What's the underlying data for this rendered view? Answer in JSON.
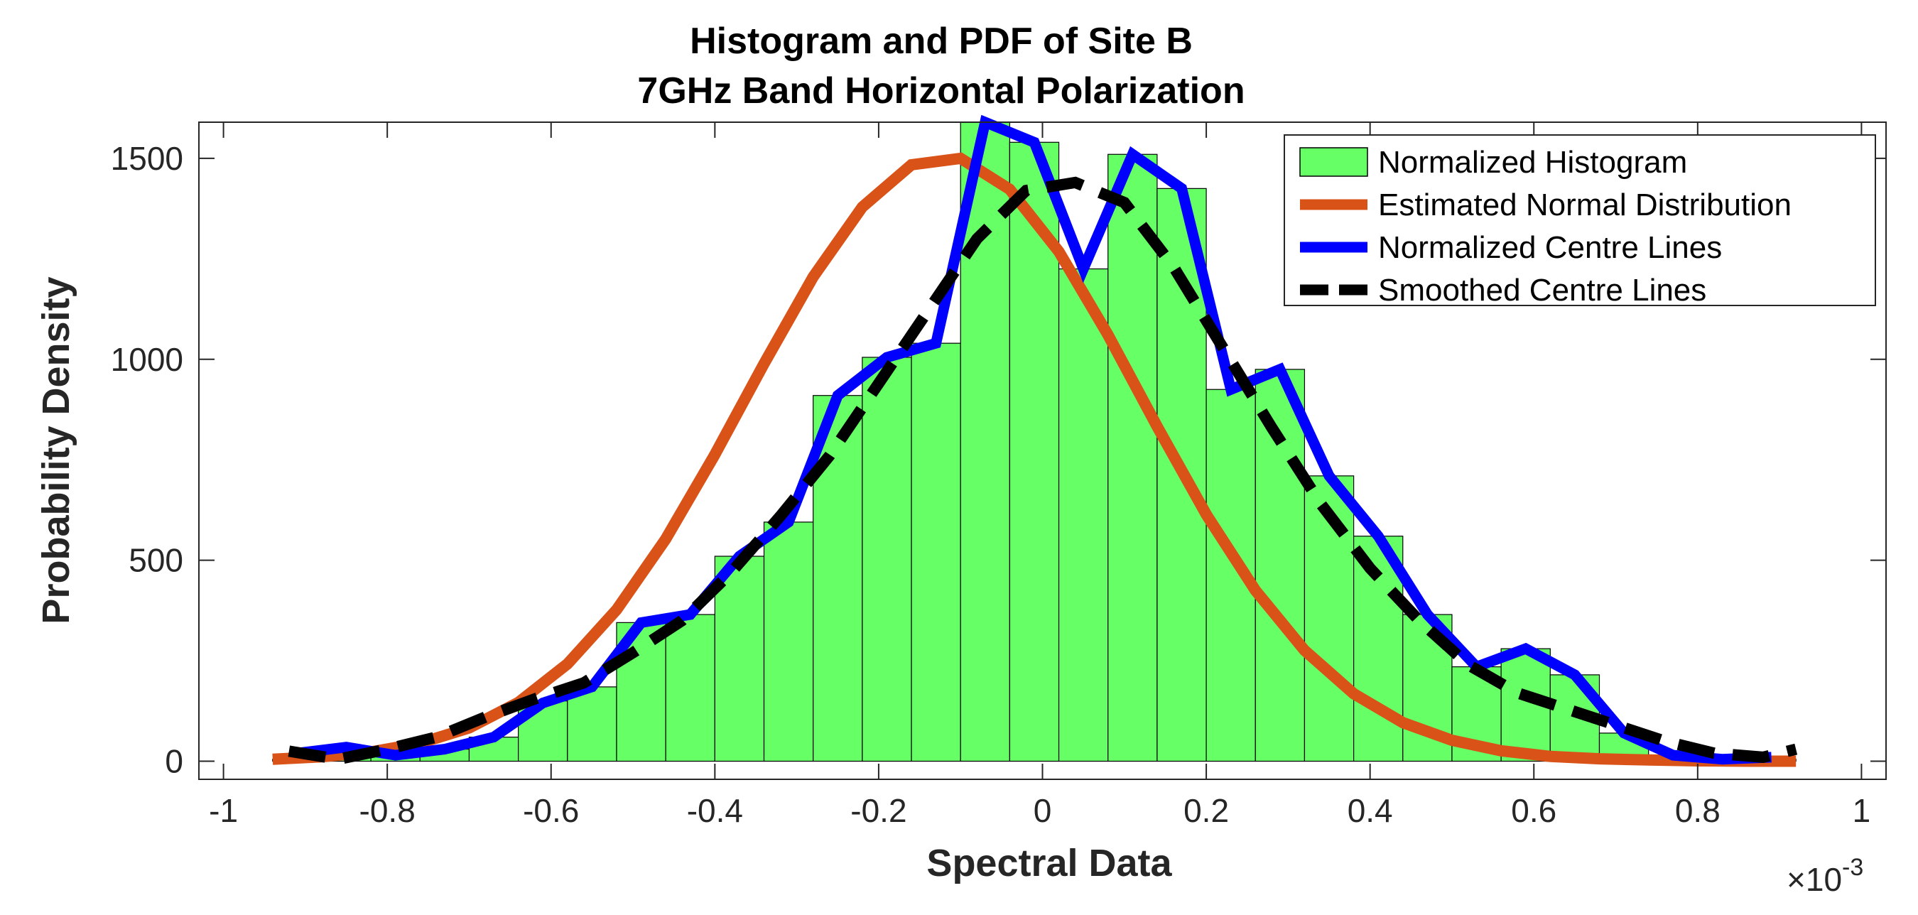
{
  "chart_data": {
    "type": "bar",
    "title": [
      "Histogram and PDF of Site B",
      "7GHz Band Horizontal Polarization"
    ],
    "xlabel": "Spectral Data",
    "ylabel": "Probability Density",
    "x_exponent_label": "×10",
    "x_exponent_power": "-3",
    "xlim": [
      -1.03,
      1.03
    ],
    "ylim": [
      -45,
      1590
    ],
    "xticks": [
      -1,
      -0.8,
      -0.6,
      -0.4,
      -0.2,
      0,
      0.2,
      0.4,
      0.6,
      0.8,
      1
    ],
    "xtick_labels": [
      "-1",
      "-0.8",
      "-0.6",
      "-0.4",
      "-0.2",
      "0",
      "0.2",
      "0.4",
      "0.6",
      "0.8",
      "1"
    ],
    "yticks": [
      0,
      500,
      1000,
      1500
    ],
    "ytick_labels": [
      "0",
      "500",
      "1000",
      "1500"
    ],
    "grid": false,
    "legend_position": "top-right",
    "legend": [
      {
        "label": "Normalized Histogram",
        "style": "patch",
        "color": "#66ff66"
      },
      {
        "label": "Estimated Normal Distribution",
        "style": "line",
        "color": "#d95319"
      },
      {
        "label": "Normalized Centre Lines",
        "style": "line",
        "color": "#0000ff"
      },
      {
        "label": "Smoothed Centre Lines",
        "style": "dash",
        "color": "#000000"
      }
    ],
    "histogram": {
      "name": "Normalized Histogram",
      "bin_edges": [
        -0.94,
        -0.88,
        -0.82,
        -0.76,
        -0.7,
        -0.64,
        -0.58,
        -0.52,
        -0.46,
        -0.4,
        -0.34,
        -0.28,
        -0.22,
        -0.16,
        -0.1,
        -0.04,
        0.02,
        0.08,
        0.14,
        0.2,
        0.26,
        0.32,
        0.38,
        0.44,
        0.5,
        0.56,
        0.62,
        0.68,
        0.74,
        0.8,
        0.86,
        0.92
      ],
      "values": [
        5,
        25,
        15,
        30,
        60,
        150,
        185,
        345,
        365,
        510,
        595,
        910,
        1005,
        1040,
        1590,
        1540,
        1225,
        1510,
        1425,
        925,
        975,
        710,
        560,
        365,
        235,
        280,
        215,
        70,
        15,
        5,
        5
      ],
      "fill": "#66ff66",
      "edge": "#000000"
    },
    "series": [
      {
        "name": "Estimated Normal Distribution",
        "color": "#d95319",
        "x": [
          -0.94,
          -0.88,
          -0.82,
          -0.76,
          -0.7,
          -0.64,
          -0.58,
          -0.52,
          -0.46,
          -0.4,
          -0.34,
          -0.28,
          -0.22,
          -0.16,
          -0.1,
          -0.04,
          0.02,
          0.08,
          0.14,
          0.2,
          0.26,
          0.32,
          0.38,
          0.44,
          0.5,
          0.56,
          0.62,
          0.68,
          0.74,
          0.8,
          0.86,
          0.92
        ],
        "values": [
          5,
          11,
          23,
          45,
          83,
          146,
          242,
          377,
          553,
          763,
          989,
          1205,
          1379,
          1484,
          1500,
          1423,
          1268,
          1061,
          833,
          614,
          425,
          276,
          168,
          96,
          52,
          26,
          12,
          6,
          3,
          1,
          0,
          0
        ]
      },
      {
        "name": "Normalized Centre Lines",
        "color": "#0000ff",
        "x": [
          -0.91,
          -0.85,
          -0.79,
          -0.73,
          -0.67,
          -0.61,
          -0.55,
          -0.49,
          -0.43,
          -0.37,
          -0.31,
          -0.25,
          -0.19,
          -0.13,
          -0.07,
          -0.01,
          0.05,
          0.11,
          0.17,
          0.23,
          0.29,
          0.35,
          0.41,
          0.47,
          0.53,
          0.59,
          0.65,
          0.71,
          0.77,
          0.83,
          0.89
        ],
        "values": [
          20,
          35,
          15,
          30,
          60,
          145,
          185,
          345,
          365,
          510,
          595,
          910,
          1005,
          1040,
          1590,
          1540,
          1225,
          1510,
          1425,
          925,
          975,
          710,
          560,
          365,
          235,
          280,
          215,
          70,
          15,
          5,
          10
        ]
      },
      {
        "name": "Smoothed Centre Lines",
        "color": "#000000",
        "dash": true,
        "x": [
          -0.92,
          -0.86,
          -0.8,
          -0.74,
          -0.68,
          -0.62,
          -0.56,
          -0.5,
          -0.44,
          -0.38,
          -0.32,
          -0.26,
          -0.2,
          -0.14,
          -0.08,
          -0.02,
          0.04,
          0.1,
          0.16,
          0.22,
          0.28,
          0.34,
          0.4,
          0.46,
          0.52,
          0.58,
          0.64,
          0.7,
          0.76,
          0.82,
          0.88,
          0.92
        ],
        "values": [
          25,
          5,
          30,
          60,
          110,
          155,
          195,
          270,
          350,
          470,
          610,
          760,
          940,
          1120,
          1300,
          1420,
          1440,
          1390,
          1230,
          1030,
          830,
          640,
          480,
          350,
          240,
          170,
          130,
          90,
          50,
          20,
          10,
          30
        ]
      }
    ]
  }
}
